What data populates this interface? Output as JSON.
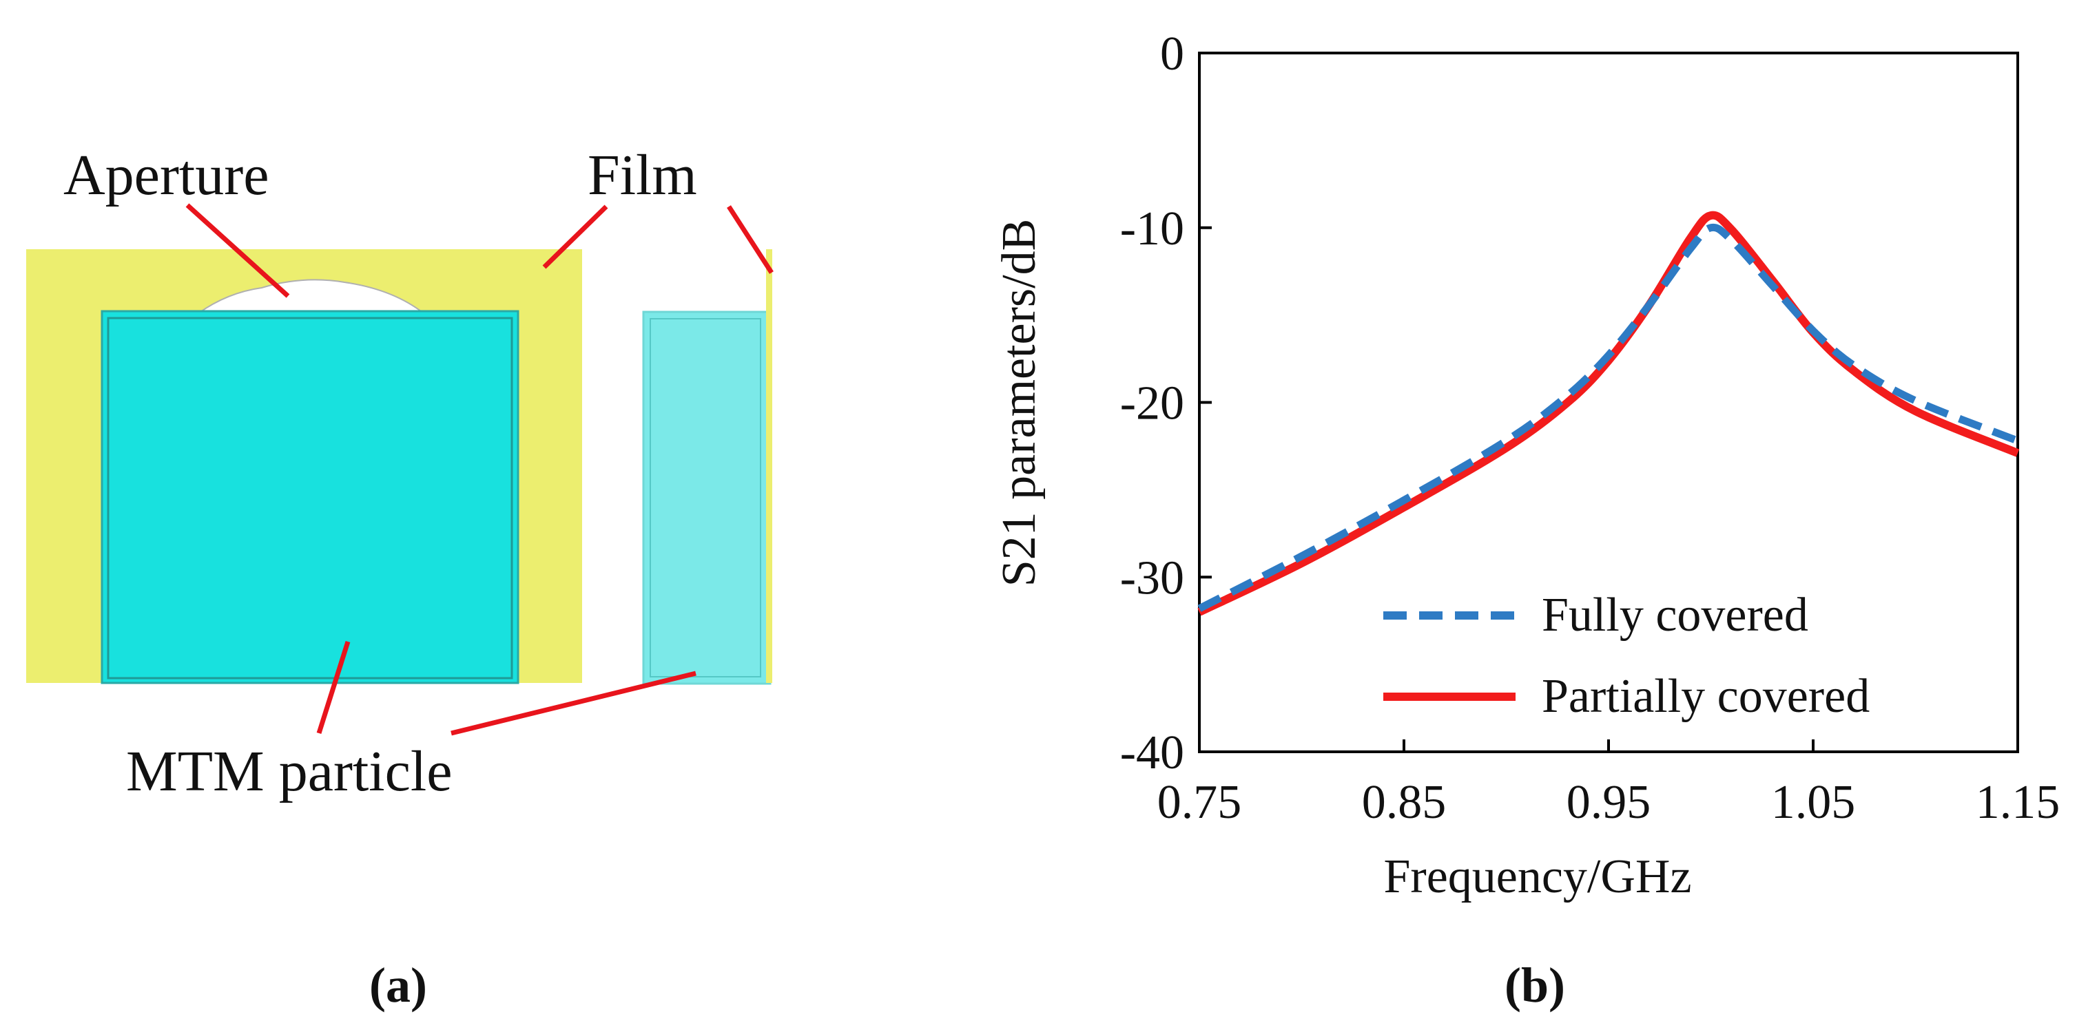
{
  "colors": {
    "film": "#ECEE6F",
    "mtm": "#18E1DE",
    "mtm_light": "#7BE9E8",
    "pointer": "#E8141C",
    "series_fully": "#2E7BC4",
    "series_partially": "#F21C1C",
    "axis": "#000000"
  },
  "panel_a": {
    "label": "(a)",
    "labels": {
      "aperture": "Aperture",
      "film": "Film",
      "mtm_particle": "MTM particle"
    }
  },
  "panel_b": {
    "label": "(b)"
  },
  "chart_data": {
    "type": "line",
    "title": "",
    "xlabel": "Frequency/GHz",
    "ylabel": "S21 parameters/dB",
    "xlim": [
      0.75,
      1.15
    ],
    "ylim": [
      -40,
      0
    ],
    "xticks": [
      0.75,
      0.85,
      0.95,
      1.05,
      1.15
    ],
    "xtick_labels": [
      "0.75",
      "0.85",
      "0.95",
      "1.05",
      "1.15"
    ],
    "yticks": [
      0,
      -10,
      -20,
      -30,
      -40
    ],
    "ytick_labels": [
      "0",
      "-10",
      "-20",
      "-30",
      "-40"
    ],
    "grid": false,
    "legend_position": "bottom-right",
    "series": [
      {
        "name": "Fully covered",
        "style": "dashed",
        "x": [
          0.75,
          0.8,
          0.85,
          0.9,
          0.93,
          0.95,
          0.97,
          0.99,
          1.0,
          1.01,
          1.03,
          1.05,
          1.07,
          1.1,
          1.15
        ],
        "y": [
          -31.8,
          -28.8,
          -25.6,
          -22.2,
          -19.6,
          -17.3,
          -14.4,
          -11.2,
          -10.0,
          -10.7,
          -13.3,
          -15.9,
          -17.9,
          -19.9,
          -22.2
        ]
      },
      {
        "name": "Partially covered",
        "style": "solid",
        "x": [
          0.75,
          0.8,
          0.85,
          0.9,
          0.93,
          0.95,
          0.97,
          0.99,
          1.0,
          1.01,
          1.03,
          1.05,
          1.07,
          1.1,
          1.15
        ],
        "y": [
          -32.0,
          -29.2,
          -26.0,
          -22.6,
          -20.0,
          -17.6,
          -14.4,
          -10.6,
          -9.3,
          -10.1,
          -13.0,
          -16.0,
          -18.2,
          -20.5,
          -22.9
        ]
      }
    ]
  }
}
